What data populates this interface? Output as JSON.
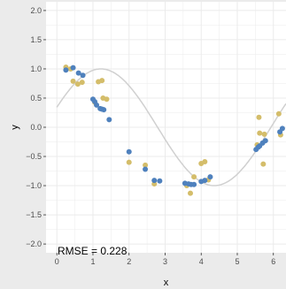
{
  "chart_data": {
    "type": "scatter",
    "xlabel": "x",
    "ylabel": "y",
    "xlim": [
      -0.3,
      6.35
    ],
    "ylim": [
      -2.15,
      2.15
    ],
    "x_ticks": [
      0,
      1,
      2,
      3,
      4,
      5,
      6
    ],
    "y_ticks": [
      -2.0,
      -1.5,
      -1.0,
      -0.5,
      0.0,
      0.5,
      1.0,
      1.5,
      2.0
    ],
    "x_tick_labels": [
      "0",
      "1",
      "2",
      "3",
      "4",
      "5",
      "6"
    ],
    "y_tick_labels": [
      "−2.0",
      "−1.5",
      "−1.0",
      "−0.5",
      "0.0",
      "0.5",
      "1.0",
      "1.5",
      "2.0"
    ],
    "grid": true,
    "annotation": "RMSE = 0.228",
    "colors": {
      "panel": "#ffffff",
      "background": "#ebebeb",
      "grid": "#ebebeb",
      "observed": "#d4bd6a",
      "predicted": "#4f81bd",
      "curve": "#d0d0d0"
    },
    "observed_points": [
      [
        0.25,
        1.03
      ],
      [
        0.38,
        1.0
      ],
      [
        0.45,
        0.79
      ],
      [
        0.58,
        0.74
      ],
      [
        0.7,
        0.77
      ],
      [
        1.05,
        0.43
      ],
      [
        1.15,
        0.78
      ],
      [
        1.25,
        0.8
      ],
      [
        1.28,
        0.5
      ],
      [
        1.38,
        0.48
      ],
      [
        2.0,
        -0.6
      ],
      [
        2.45,
        -0.65
      ],
      [
        2.7,
        -0.97
      ],
      [
        3.6,
        -1.0
      ],
      [
        3.7,
        -1.13
      ],
      [
        3.8,
        -0.85
      ],
      [
        4.0,
        -0.62
      ],
      [
        4.1,
        -0.59
      ],
      [
        4.2,
        -0.9
      ],
      [
        5.55,
        -0.3
      ],
      [
        5.6,
        0.17
      ],
      [
        5.62,
        -0.1
      ],
      [
        5.72,
        -0.63
      ],
      [
        5.75,
        -0.12
      ],
      [
        6.15,
        0.23
      ],
      [
        6.2,
        -0.13
      ]
    ],
    "predicted_points": [
      [
        0.25,
        0.98
      ],
      [
        0.45,
        1.02
      ],
      [
        0.6,
        0.93
      ],
      [
        0.72,
        0.89
      ],
      [
        1.0,
        0.48
      ],
      [
        1.05,
        0.44
      ],
      [
        1.1,
        0.38
      ],
      [
        1.2,
        0.32
      ],
      [
        1.25,
        0.31
      ],
      [
        1.3,
        0.3
      ],
      [
        1.45,
        0.13
      ],
      [
        2.0,
        -0.42
      ],
      [
        2.45,
        -0.72
      ],
      [
        2.7,
        -0.91
      ],
      [
        2.85,
        -0.92
      ],
      [
        3.55,
        -0.96
      ],
      [
        3.65,
        -0.97
      ],
      [
        3.72,
        -0.98
      ],
      [
        3.8,
        -0.98
      ],
      [
        4.0,
        -0.93
      ],
      [
        4.1,
        -0.91
      ],
      [
        4.25,
        -0.85
      ],
      [
        5.52,
        -0.38
      ],
      [
        5.58,
        -0.34
      ],
      [
        5.62,
        -0.32
      ],
      [
        5.7,
        -0.27
      ],
      [
        5.78,
        -0.23
      ],
      [
        6.18,
        -0.08
      ],
      [
        6.25,
        -0.02
      ]
    ]
  }
}
